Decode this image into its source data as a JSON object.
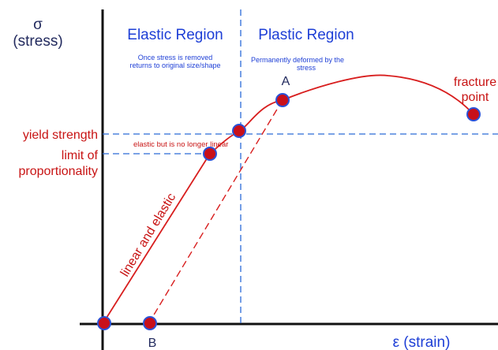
{
  "axes": {
    "y_symbol": "σ",
    "y_label": "(stress)",
    "x_label": "ε (strain)"
  },
  "regions": {
    "elastic": {
      "title": "Elastic Region",
      "note_line1": "Once stress is removed",
      "note_line2": "returns to original size/shape"
    },
    "plastic": {
      "title": "Plastic Region",
      "note_line1": "Permanently deformed by the",
      "note_line2": "stress"
    }
  },
  "labels": {
    "yield_strength": "yield strength",
    "limit_line1": "limit of",
    "limit_line2": "proportionality",
    "elastic_not_linear": "elastic but is no longer linear",
    "linear_elastic": "linear and elastic",
    "fracture_line1": "fracture",
    "fracture_line2": "point",
    "point_a": "A",
    "point_b": "B"
  },
  "colors": {
    "axis": "#111111",
    "curve": "#d81e1e",
    "guide": "#2a6ad8",
    "point_fill": "#c8101a",
    "point_stroke": "#2a52d8"
  }
}
